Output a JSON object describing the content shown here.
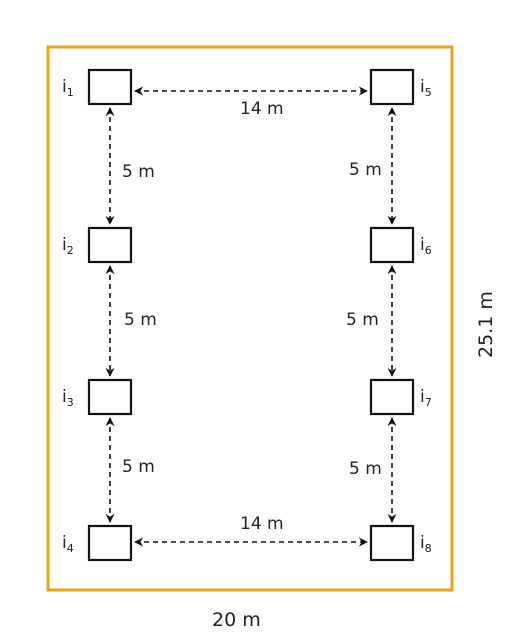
{
  "room": {
    "width_label": "20 m",
    "height_label": "25.1 m",
    "border_color": "#E8A317"
  },
  "nodes": [
    {
      "id": "i1",
      "letter": "i",
      "sub": "1"
    },
    {
      "id": "i2",
      "letter": "i",
      "sub": "2"
    },
    {
      "id": "i3",
      "letter": "i",
      "sub": "3"
    },
    {
      "id": "i4",
      "letter": "i",
      "sub": "4"
    },
    {
      "id": "i5",
      "letter": "i",
      "sub": "5"
    },
    {
      "id": "i6",
      "letter": "i",
      "sub": "6"
    },
    {
      "id": "i7",
      "letter": "i",
      "sub": "7"
    },
    {
      "id": "i8",
      "letter": "i",
      "sub": "8"
    }
  ],
  "distances": {
    "top": "14 m",
    "bottom": "14 m",
    "left_1_2": "5 m",
    "left_2_3": "5 m",
    "left_3_4": "5 m",
    "right_5_6": "5 m",
    "right_6_7": "5 m",
    "right_7_8": "5 m"
  }
}
